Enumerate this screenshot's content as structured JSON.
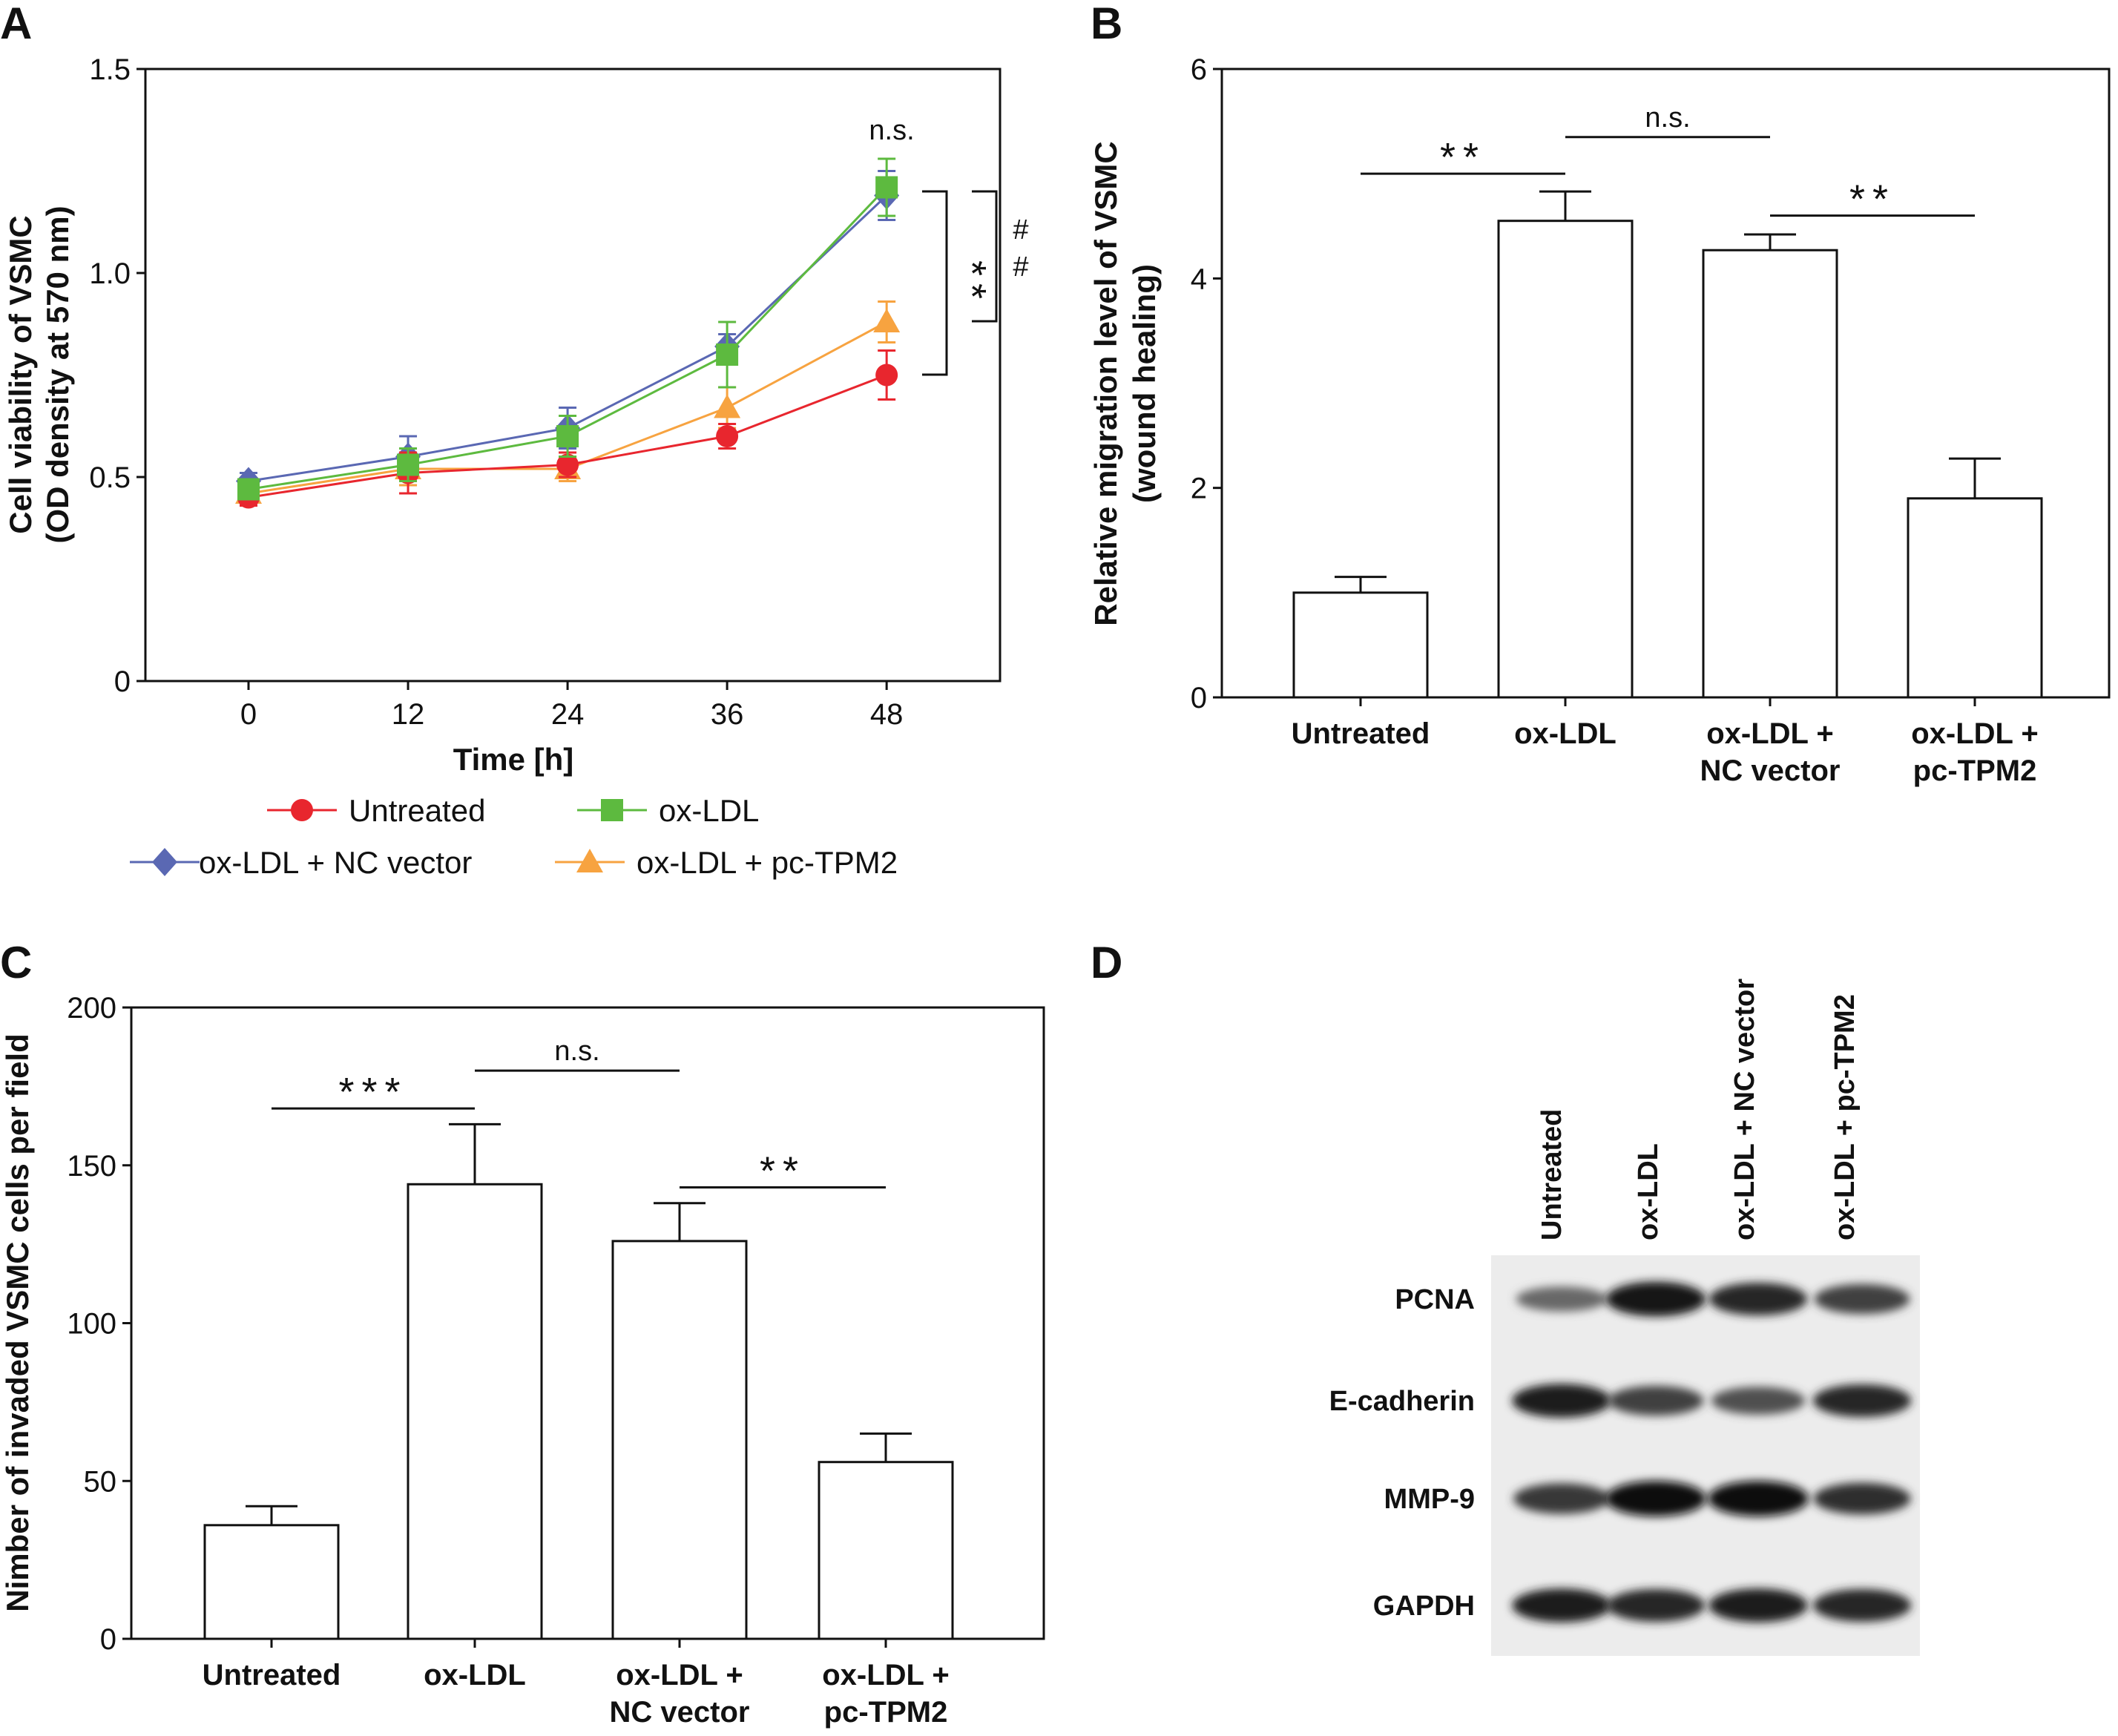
{
  "panels": {
    "A": {
      "label": "A"
    },
    "B": {
      "label": "B"
    },
    "C": {
      "label": "C"
    },
    "D": {
      "label": "D"
    }
  },
  "chart_data": [
    {
      "panel": "A",
      "type": "line",
      "xlabel": "Time [h]",
      "ylabel_line1": "Cell viability of VSMC",
      "ylabel_line2": "(OD density at 570 nm)",
      "x": [
        0,
        12,
        24,
        36,
        48
      ],
      "x_ticks": [
        "0",
        "12",
        "24",
        "36",
        "48"
      ],
      "ylim": [
        0,
        1.5
      ],
      "y_ticks": [
        "0",
        "0.5",
        "1.0",
        "1.5"
      ],
      "series": [
        {
          "name": "Untreated",
          "color": "#e8262e",
          "marker": "circle",
          "values": [
            0.45,
            0.51,
            0.53,
            0.6,
            0.75
          ],
          "errors": [
            0.02,
            0.05,
            0.03,
            0.03,
            0.06
          ]
        },
        {
          "name": "ox-LDL",
          "color": "#5dba3f",
          "marker": "square",
          "values": [
            0.47,
            0.53,
            0.6,
            0.8,
            1.21
          ],
          "errors": [
            0.02,
            0.04,
            0.05,
            0.08,
            0.07
          ]
        },
        {
          "name": "ox-LDL + NC vector",
          "color": "#5a68b3",
          "marker": "diamond",
          "values": [
            0.49,
            0.55,
            0.62,
            0.82,
            1.19
          ],
          "errors": [
            0.02,
            0.05,
            0.05,
            0.03,
            0.06
          ]
        },
        {
          "name": "ox-LDL + pc-TPM2",
          "color": "#f7a340",
          "marker": "triangle",
          "values": [
            0.46,
            0.52,
            0.52,
            0.67,
            0.88
          ],
          "errors": [
            0.02,
            0.04,
            0.03,
            0.05,
            0.05
          ]
        }
      ],
      "annotations": {
        "ns": "n.s.",
        "stars": "**",
        "hash1": "#",
        "hash2": "#"
      },
      "legend_position": "bottom"
    },
    {
      "panel": "B",
      "type": "bar",
      "ylabel_line1": "Relative migration level of VSMC",
      "ylabel_line2": "(wound healing)",
      "categories": [
        [
          "Untreated"
        ],
        [
          "ox-LDL"
        ],
        [
          "ox-LDL +",
          "NC vector"
        ],
        [
          "ox-LDL +",
          "pc-TPM2"
        ]
      ],
      "values": [
        1.0,
        4.55,
        4.27,
        1.9
      ],
      "errors": [
        0.15,
        0.28,
        0.15,
        0.38
      ],
      "ylim": [
        0,
        6
      ],
      "y_ticks": [
        "0",
        "2",
        "4",
        "6"
      ],
      "annotations": [
        {
          "text": "**",
          "from": 0,
          "to": 1,
          "level": 5.0
        },
        {
          "text": "n.s.",
          "from": 1,
          "to": 2,
          "level": 5.35
        },
        {
          "text": "**",
          "from": 2,
          "to": 3,
          "level": 4.6
        }
      ]
    },
    {
      "panel": "C",
      "type": "bar",
      "ylabel": "Nimber of invaded VSMC cells per field",
      "categories": [
        [
          "Untreated"
        ],
        [
          "ox-LDL"
        ],
        [
          "ox-LDL +",
          "NC vector"
        ],
        [
          "ox-LDL +",
          "pc-TPM2"
        ]
      ],
      "values": [
        36,
        144,
        126,
        56
      ],
      "errors": [
        6,
        19,
        12,
        9
      ],
      "ylim": [
        0,
        200
      ],
      "y_ticks": [
        "0",
        "50",
        "100",
        "150",
        "200"
      ],
      "annotations": [
        {
          "text": "***",
          "from": 0,
          "to": 1,
          "level": 168
        },
        {
          "text": "n.s.",
          "from": 1,
          "to": 2,
          "level": 180
        },
        {
          "text": "**",
          "from": 2,
          "to": 3,
          "level": 143
        }
      ]
    }
  ],
  "western_blot": {
    "lanes": [
      "Untreated",
      "ox-LDL",
      "ox-LDL + NC vector",
      "ox-LDL + pc-TPM2"
    ],
    "rows": [
      {
        "name": "PCNA",
        "intensity": [
          0.45,
          0.95,
          0.85,
          0.7
        ]
      },
      {
        "name": "E-cadherin",
        "intensity": [
          0.9,
          0.7,
          0.6,
          0.85
        ]
      },
      {
        "name": "MMP-9",
        "intensity": [
          0.75,
          1.0,
          1.0,
          0.8
        ]
      },
      {
        "name": "GAPDH",
        "intensity": [
          0.9,
          0.85,
          0.9,
          0.85
        ]
      }
    ]
  }
}
